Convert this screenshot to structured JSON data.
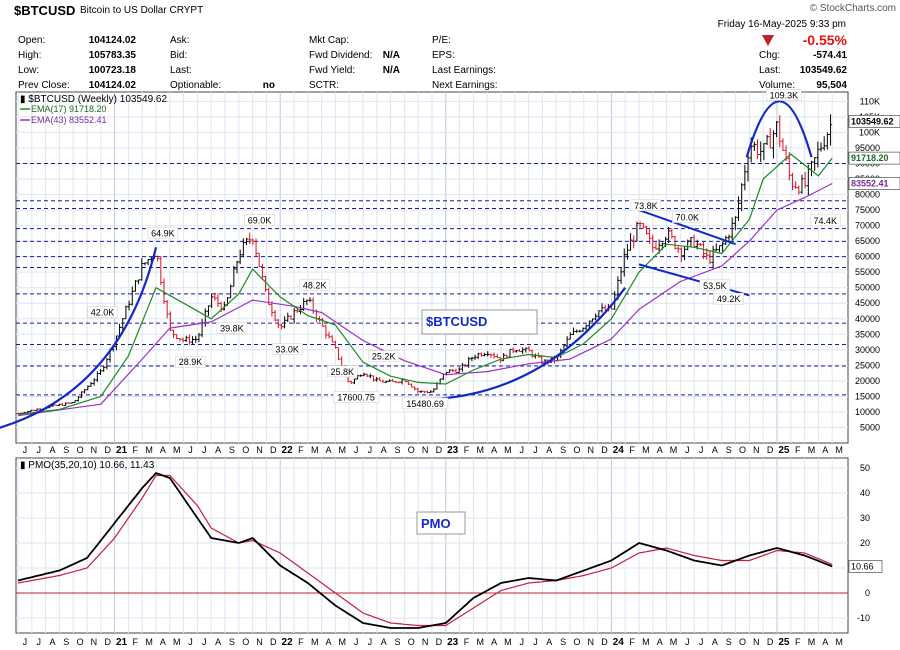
{
  "header": {
    "symbol": "$BTCUSD",
    "name": "Bitcoin to US Dollar",
    "exchange": "CRYPT",
    "logo": "© StockCharts.com",
    "date": "Friday   16-May-2025   9:33 pm",
    "change_pct": "-0.55%",
    "change_label": "Chg:",
    "change_value": "-574.41",
    "last_label": "Last:",
    "last_value": "103549.62",
    "volume_label": "Volume:",
    "volume_value": "95,504",
    "col1": [
      {
        "label": "Open:",
        "value": "104124.02"
      },
      {
        "label": "High:",
        "value": "105783.35"
      },
      {
        "label": "Low:",
        "value": "100723.18"
      },
      {
        "label": "Prev Close:",
        "value": "104124.02"
      }
    ],
    "col2": [
      {
        "label": "Ask:",
        "value": ""
      },
      {
        "label": "Bid:",
        "value": ""
      },
      {
        "label": "Last:",
        "value": ""
      },
      {
        "label": "Optionable:",
        "value": "no"
      }
    ],
    "col3": [
      {
        "label": "Mkt Cap:",
        "value": ""
      },
      {
        "label": "Fwd Dividend:",
        "value": "N/A"
      },
      {
        "label": "Fwd Yield:",
        "value": "N/A"
      },
      {
        "label": "SCTR:",
        "value": ""
      }
    ],
    "col4": [
      {
        "label": "P/E:",
        "value": ""
      },
      {
        "label": "EPS:",
        "value": ""
      },
      {
        "label": "Last Earnings:",
        "value": ""
      },
      {
        "label": "Next Earnings:",
        "value": ""
      }
    ]
  },
  "colors": {
    "up": "#000000",
    "down": "#e0101c",
    "ema17": "#1f8a1f",
    "ema43": "#9b30c8",
    "annotation": "#1428c8",
    "hline": "#1a1aa0",
    "pmo_signal": "#c81e3c"
  },
  "chart_data": [
    {
      "type": "candlestick",
      "title": "$BTCUSD (Weekly) 103549.62",
      "legend": [
        {
          "name": "EMA(17)",
          "value": "91718.20"
        },
        {
          "name": "EMA(43)",
          "value": "83552.41"
        }
      ],
      "y_ticks": [
        "110K",
        "105K",
        "100K",
        "95000",
        "90000",
        "85000",
        "80000",
        "75000",
        "70000",
        "65000",
        "60000",
        "55000",
        "50000",
        "45000",
        "40000",
        "35000",
        "30000",
        "25000",
        "20000",
        "15000",
        "10000",
        "5000"
      ],
      "y_tick_values": [
        110000,
        105000,
        100000,
        95000,
        90000,
        85000,
        80000,
        75000,
        70000,
        65000,
        60000,
        55000,
        50000,
        45000,
        40000,
        35000,
        30000,
        25000,
        20000,
        15000,
        10000,
        5000
      ],
      "ylim": [
        0,
        113000
      ],
      "xlim": [
        "2020-06",
        "2025-06"
      ],
      "x_ticks": [
        "J",
        "J",
        "A",
        "S",
        "O",
        "N",
        "D",
        "21",
        "F",
        "M",
        "A",
        "M",
        "J",
        "J",
        "A",
        "S",
        "O",
        "N",
        "D",
        "22",
        "F",
        "M",
        "A",
        "M",
        "J",
        "J",
        "A",
        "S",
        "O",
        "N",
        "D",
        "23",
        "F",
        "M",
        "A",
        "M",
        "J",
        "J",
        "A",
        "S",
        "O",
        "N",
        "D",
        "24",
        "F",
        "M",
        "A",
        "M",
        "J",
        "J",
        "A",
        "S",
        "O",
        "N",
        "D",
        "25",
        "F",
        "M",
        "A",
        "M",
        "J"
      ],
      "last_price_label": "103549.62",
      "ema17_label": "91718.20",
      "ema43_label": "83552.41",
      "price_path": [
        [
          "2020-06",
          9500
        ],
        [
          "2020-08",
          11500
        ],
        [
          "2020-10",
          13000
        ],
        [
          "2020-12",
          23000
        ],
        [
          "2021-01",
          33000
        ],
        [
          "2021-02",
          45000
        ],
        [
          "2021-03",
          57000
        ],
        [
          "2021-04",
          62000
        ],
        [
          "2021-05",
          36000
        ],
        [
          "2021-06",
          33000
        ],
        [
          "2021-07",
          33500
        ],
        [
          "2021-08",
          47000
        ],
        [
          "2021-09",
          43000
        ],
        [
          "2021-10",
          61000
        ],
        [
          "2021-11",
          67000
        ],
        [
          "2021-12",
          47000
        ],
        [
          "2022-01",
          37000
        ],
        [
          "2022-02",
          42000
        ],
        [
          "2022-03",
          46000
        ],
        [
          "2022-04",
          38000
        ],
        [
          "2022-05",
          30000
        ],
        [
          "2022-06",
          19000
        ],
        [
          "2022-07",
          23000
        ],
        [
          "2022-08",
          20000
        ],
        [
          "2022-09",
          19500
        ],
        [
          "2022-10",
          20500
        ],
        [
          "2022-11",
          16500
        ],
        [
          "2022-12",
          16500
        ],
        [
          "2023-01",
          23000
        ],
        [
          "2023-02",
          23500
        ],
        [
          "2023-03",
          28000
        ],
        [
          "2023-04",
          29500
        ],
        [
          "2023-05",
          27000
        ],
        [
          "2023-06",
          30500
        ],
        [
          "2023-07",
          29500
        ],
        [
          "2023-08",
          26000
        ],
        [
          "2023-09",
          27000
        ],
        [
          "2023-10",
          34500
        ],
        [
          "2023-11",
          37700
        ],
        [
          "2023-12",
          42500
        ],
        [
          "2024-01",
          43000
        ],
        [
          "2024-02",
          61000
        ],
        [
          "2024-03",
          70000
        ],
        [
          "2024-04",
          63000
        ],
        [
          "2024-05",
          67500
        ],
        [
          "2024-06",
          62000
        ],
        [
          "2024-07",
          65000
        ],
        [
          "2024-08",
          59000
        ],
        [
          "2024-09",
          63300
        ],
        [
          "2024-10",
          72000
        ],
        [
          "2024-11",
          96500
        ],
        [
          "2024-12",
          93500
        ],
        [
          "2025-01",
          102000
        ],
        [
          "2025-02",
          84000
        ],
        [
          "2025-03",
          82500
        ],
        [
          "2025-04",
          94000
        ],
        [
          "2025-05",
          103549.62
        ]
      ],
      "ema17_path": [
        [
          "2020-06",
          9200
        ],
        [
          "2020-09",
          10800
        ],
        [
          "2020-12",
          15000
        ],
        [
          "2021-02",
          28000
        ],
        [
          "2021-04",
          50000
        ],
        [
          "2021-06",
          45000
        ],
        [
          "2021-08",
          40000
        ],
        [
          "2021-10",
          48000
        ],
        [
          "2021-11",
          56000
        ],
        [
          "2022-01",
          47000
        ],
        [
          "2022-03",
          41000
        ],
        [
          "2022-05",
          38000
        ],
        [
          "2022-07",
          26000
        ],
        [
          "2022-09",
          21500
        ],
        [
          "2022-11",
          19500
        ],
        [
          "2023-01",
          19000
        ],
        [
          "2023-03",
          23500
        ],
        [
          "2023-05",
          27000
        ],
        [
          "2023-07",
          28500
        ],
        [
          "2023-09",
          27500
        ],
        [
          "2023-11",
          32000
        ],
        [
          "2024-01",
          40000
        ],
        [
          "2024-03",
          55000
        ],
        [
          "2024-05",
          64000
        ],
        [
          "2024-07",
          63000
        ],
        [
          "2024-09",
          61000
        ],
        [
          "2024-11",
          72000
        ],
        [
          "2024-12",
          85000
        ],
        [
          "2025-02",
          93000
        ],
        [
          "2025-04",
          86000
        ],
        [
          "2025-05",
          91718.2
        ]
      ],
      "ema43_path": [
        [
          "2020-06",
          8800
        ],
        [
          "2020-12",
          12500
        ],
        [
          "2021-03",
          27000
        ],
        [
          "2021-05",
          37000
        ],
        [
          "2021-08",
          39000
        ],
        [
          "2021-11",
          46000
        ],
        [
          "2022-02",
          44000
        ],
        [
          "2022-04",
          42000
        ],
        [
          "2022-07",
          33000
        ],
        [
          "2022-10",
          26500
        ],
        [
          "2023-01",
          22000
        ],
        [
          "2023-04",
          23000
        ],
        [
          "2023-07",
          25500
        ],
        [
          "2023-10",
          27000
        ],
        [
          "2024-01",
          33500
        ],
        [
          "2024-03",
          43000
        ],
        [
          "2024-06",
          52000
        ],
        [
          "2024-09",
          57000
        ],
        [
          "2024-11",
          65000
        ],
        [
          "2025-01",
          75000
        ],
        [
          "2025-03",
          79000
        ],
        [
          "2025-05",
          83552.41
        ]
      ],
      "horizontal_levels": [
        90000,
        78000,
        75500,
        69000,
        64900,
        60000,
        56500,
        48000,
        38600,
        31700,
        24800,
        15500
      ],
      "annotations": [
        {
          "text": "64.9K",
          "x": "2021-04",
          "y": 64900,
          "pos": "above"
        },
        {
          "text": "42.0K",
          "x": "2021-01",
          "y": 42000,
          "pos": "left"
        },
        {
          "text": "28.9K",
          "x": "2021-06",
          "y": 28900,
          "pos": "below"
        },
        {
          "text": "69.0K",
          "x": "2021-11",
          "y": 69000,
          "pos": "above"
        },
        {
          "text": "39.8K",
          "x": "2021-09",
          "y": 39800,
          "pos": "below"
        },
        {
          "text": "33.0K",
          "x": "2022-01",
          "y": 33000,
          "pos": "below"
        },
        {
          "text": "48.2K",
          "x": "2022-03",
          "y": 48200,
          "pos": "above"
        },
        {
          "text": "25.8K",
          "x": "2022-05",
          "y": 25800,
          "pos": "below"
        },
        {
          "text": "25.2K",
          "x": "2022-08",
          "y": 25200,
          "pos": "above"
        },
        {
          "text": "17600.75",
          "x": "2022-06",
          "y": 17600,
          "pos": "below"
        },
        {
          "text": "15480.69",
          "x": "2022-11",
          "y": 15480,
          "pos": "below"
        },
        {
          "text": "73.8K",
          "x": "2024-03",
          "y": 73800,
          "pos": "above"
        },
        {
          "text": "70.0K",
          "x": "2024-06",
          "y": 70000,
          "pos": "above"
        },
        {
          "text": "53.5K",
          "x": "2024-08",
          "y": 53500,
          "pos": "below"
        },
        {
          "text": "49.2K",
          "x": "2024-09",
          "y": 49200,
          "pos": "below"
        },
        {
          "text": "109.3K",
          "x": "2025-01",
          "y": 109300,
          "pos": "above"
        },
        {
          "text": "74.4K",
          "x": "2025-04",
          "y": 74400,
          "pos": "below"
        }
      ],
      "box_label": "$BTCUSD"
    },
    {
      "type": "line",
      "title": "PMO(35,20,10) 10.66, 11.43",
      "box_label": "PMO",
      "ylim": [
        -16,
        54
      ],
      "y_ticks": [
        "50",
        "40",
        "30",
        "20",
        "10",
        "0",
        "-10"
      ],
      "y_tick_values": [
        50,
        40,
        30,
        20,
        10,
        0,
        -10
      ],
      "last_label": "10.66",
      "series": [
        {
          "name": "PMO",
          "color": "#000000",
          "values": [
            [
              "2020-06",
              5
            ],
            [
              "2020-09",
              9
            ],
            [
              "2020-11",
              14
            ],
            [
              "2021-01",
              28
            ],
            [
              "2021-03",
              42
            ],
            [
              "2021-04",
              48
            ],
            [
              "2021-05",
              46
            ],
            [
              "2021-07",
              30
            ],
            [
              "2021-08",
              22
            ],
            [
              "2021-10",
              20
            ],
            [
              "2021-11",
              22
            ],
            [
              "2022-01",
              11
            ],
            [
              "2022-03",
              4
            ],
            [
              "2022-05",
              -5
            ],
            [
              "2022-07",
              -12
            ],
            [
              "2022-09",
              -14
            ],
            [
              "2022-11",
              -14
            ],
            [
              "2023-01",
              -12
            ],
            [
              "2023-03",
              -2
            ],
            [
              "2023-05",
              4
            ],
            [
              "2023-07",
              6
            ],
            [
              "2023-09",
              5
            ],
            [
              "2023-11",
              9
            ],
            [
              "2024-01",
              13
            ],
            [
              "2024-03",
              20
            ],
            [
              "2024-05",
              17
            ],
            [
              "2024-07",
              13
            ],
            [
              "2024-09",
              11
            ],
            [
              "2024-11",
              15
            ],
            [
              "2025-01",
              18
            ],
            [
              "2025-03",
              15
            ],
            [
              "2025-05",
              10.66
            ]
          ]
        },
        {
          "name": "Signal",
          "color": "#c81e3c",
          "values": [
            [
              "2020-06",
              4
            ],
            [
              "2020-09",
              7
            ],
            [
              "2020-11",
              10
            ],
            [
              "2021-01",
              22
            ],
            [
              "2021-03",
              38
            ],
            [
              "2021-04",
              47
            ],
            [
              "2021-05",
              47
            ],
            [
              "2021-07",
              35
            ],
            [
              "2021-08",
              26
            ],
            [
              "2021-10",
              20
            ],
            [
              "2021-11",
              21
            ],
            [
              "2022-01",
              16
            ],
            [
              "2022-03",
              8
            ],
            [
              "2022-05",
              0
            ],
            [
              "2022-07",
              -8
            ],
            [
              "2022-09",
              -12
            ],
            [
              "2022-11",
              -13
            ],
            [
              "2023-01",
              -13
            ],
            [
              "2023-03",
              -6
            ],
            [
              "2023-05",
              1
            ],
            [
              "2023-07",
              4
            ],
            [
              "2023-09",
              5
            ],
            [
              "2023-11",
              7
            ],
            [
              "2024-01",
              10
            ],
            [
              "2024-03",
              16
            ],
            [
              "2024-05",
              18
            ],
            [
              "2024-07",
              15
            ],
            [
              "2024-09",
              13
            ],
            [
              "2024-11",
              13
            ],
            [
              "2025-01",
              17
            ],
            [
              "2025-03",
              16
            ],
            [
              "2025-05",
              11.43
            ]
          ]
        }
      ]
    }
  ]
}
